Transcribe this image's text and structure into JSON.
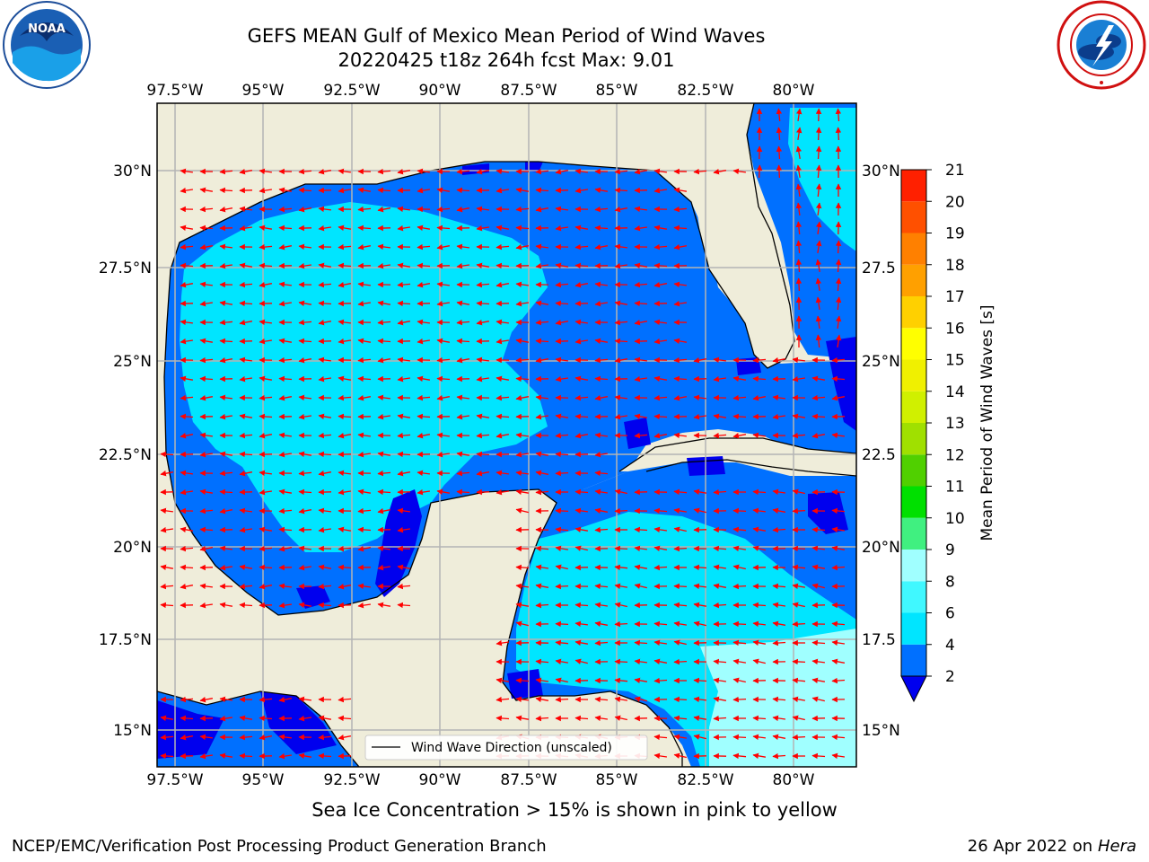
{
  "title_line1": "GEFS MEAN Gulf of Mexico Mean Period of Wind Waves",
  "title_line2": "20220425 t18z 264h fcst   Max: 9.01",
  "longitude_ticks": [
    "97.5°W",
    "95°W",
    "92.5°W",
    "90°W",
    "87.5°W",
    "85°W",
    "82.5°W",
    "80°W"
  ],
  "latitude_ticks_left": [
    "30°N",
    "27.5°N",
    "25°N",
    "22.5°N",
    "20°N",
    "17.5°N",
    "15°N"
  ],
  "latitude_ticks_right": [
    "30°N",
    "27.5",
    "25°N",
    "22.5",
    "20°N",
    "17.5",
    "15°N"
  ],
  "legend_label": "Wind Wave Direction (unscaled)",
  "colorbar": {
    "label": "Mean Period of Wind Waves [s]",
    "ticks": [
      "2",
      "4",
      "6",
      "8",
      "9",
      "10",
      "11",
      "12",
      "13",
      "14",
      "15",
      "16",
      "17",
      "18",
      "19",
      "20",
      "21"
    ],
    "colors": [
      "#0070ff",
      "#00e5ff",
      "#40f8ff",
      "#a0ffff",
      "#40f080",
      "#00e000",
      "#50d000",
      "#a0e000",
      "#d0f000",
      "#f0f000",
      "#ffff00",
      "#ffd000",
      "#ffa000",
      "#ff8000",
      "#ff5000",
      "#ff2000"
    ],
    "extend_color": "#0000ee"
  },
  "colors": {
    "land": "#efedda",
    "dark_blue": "#0000ee",
    "blue": "#0070ff",
    "cyan": "#00e5ff",
    "light_cyan": "#a0ffff",
    "arrow": "#ff0000",
    "grid": "#b4b4b4"
  },
  "caption": "Sea Ice Concentration > 15% is shown in pink to yellow",
  "footer_left": "NCEP/EMC/Verification Post Processing Product Generation Branch",
  "footer_right_prefix": "26 Apr 2022 on ",
  "footer_right_host": "Hera",
  "logos": {
    "left": "noaa-logo",
    "right": "nws-logo"
  }
}
